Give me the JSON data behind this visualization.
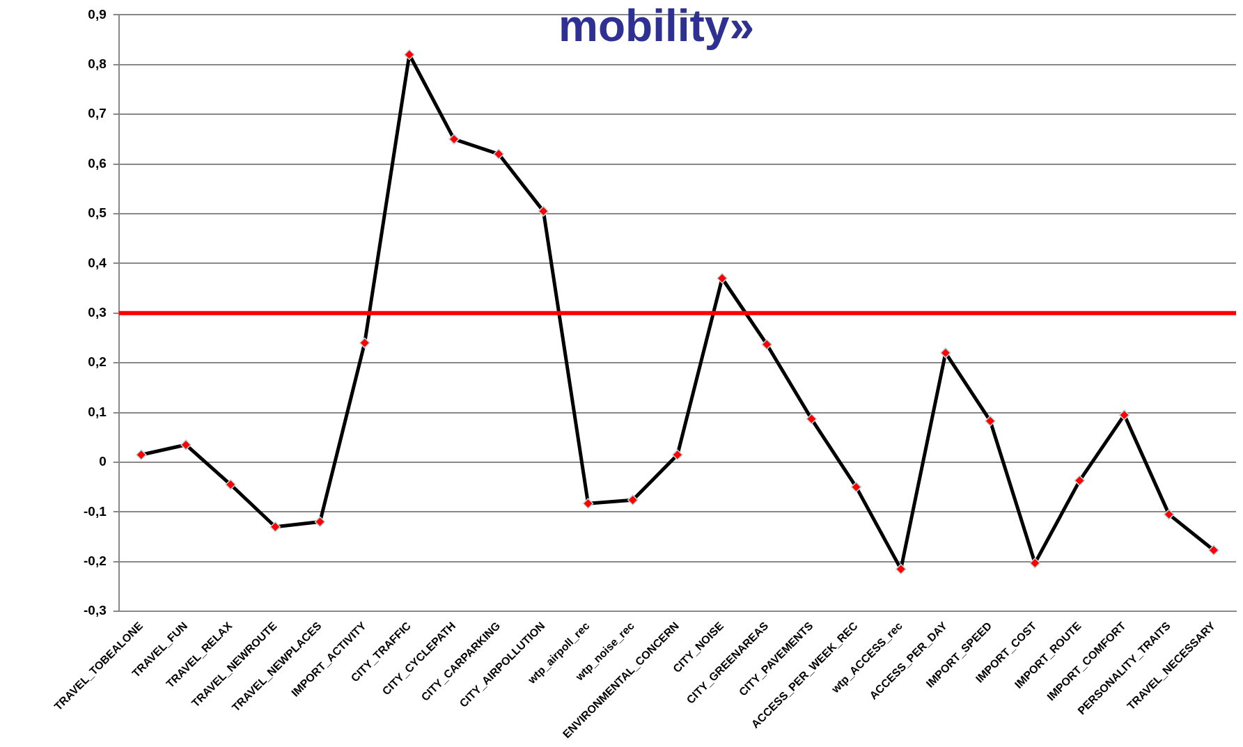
{
  "chart_data": {
    "type": "line",
    "title": "mobility»",
    "categories": [
      "TRAVEL_TOBEALONE",
      "TRAVEL_FUN",
      "TRAVEL_RELAX",
      "TRAVEL_NEWROUTE",
      "TRAVEL_NEWPLACES",
      "IMPORT_ACTIVITY",
      "CITY_TRAFFIC",
      "CITY_CYCLEPATH",
      "CITY_CARPARKING",
      "CITY_AIRPOLLUTION",
      "wtp_airpoll_rec",
      "wtp_noise_rec",
      "ENVIRONMENTAL_CONCERN",
      "CITY_NOISE",
      "CITY_GREENAREAS",
      "CITY_PAVEMENTS",
      "ACCESS_PER_WEEK_REC",
      "wtp_ACCESS_rec",
      "ACCESS_PER_DAY",
      "IMPORT_SPEED",
      "IMPORT_COST",
      "IMPORT_ROUTE",
      "IMPORT_COMFORT",
      "PERSONALITY_TRAITS",
      "TRAVEL_NECESSARY"
    ],
    "series": [
      {
        "color": "#000000",
        "values": [
          0.015,
          0.035,
          -0.045,
          -0.13,
          -0.12,
          0.24,
          0.82,
          0.65,
          0.62,
          0.505,
          -0.083,
          -0.076,
          0.015,
          0.37,
          0.237,
          0.087,
          -0.05,
          -0.215,
          0.22,
          0.083,
          -0.203,
          -0.037,
          0.095,
          -0.105,
          -0.177
        ]
      }
    ],
    "ylim": [
      -0.3,
      0.9
    ],
    "yticks": [
      {
        "value": -0.3,
        "label": "-0,3"
      },
      {
        "value": -0.2,
        "label": "-0,2"
      },
      {
        "value": -0.1,
        "label": "-0,1"
      },
      0,
      {
        "value": 0.1,
        "label": "0,1"
      },
      {
        "value": 0.2,
        "label": "0,2"
      },
      {
        "value": 0.3,
        "label": "0,3"
      },
      {
        "value": 0.4,
        "label": "0,4"
      },
      {
        "value": 0.5,
        "label": "0,5"
      },
      {
        "value": 0.6,
        "label": "0,6"
      },
      {
        "value": 0.7,
        "label": "0,7"
      },
      {
        "value": 0.8,
        "label": "0,8"
      },
      {
        "value": 0.9,
        "label": "0,9"
      }
    ],
    "ref_lines": [
      {
        "axis": "y",
        "value": 0.3,
        "label": null,
        "color": "#ff0000"
      }
    ],
    "grid": "y",
    "legend": false,
    "marker": "diamond",
    "line_style": "solid"
  }
}
